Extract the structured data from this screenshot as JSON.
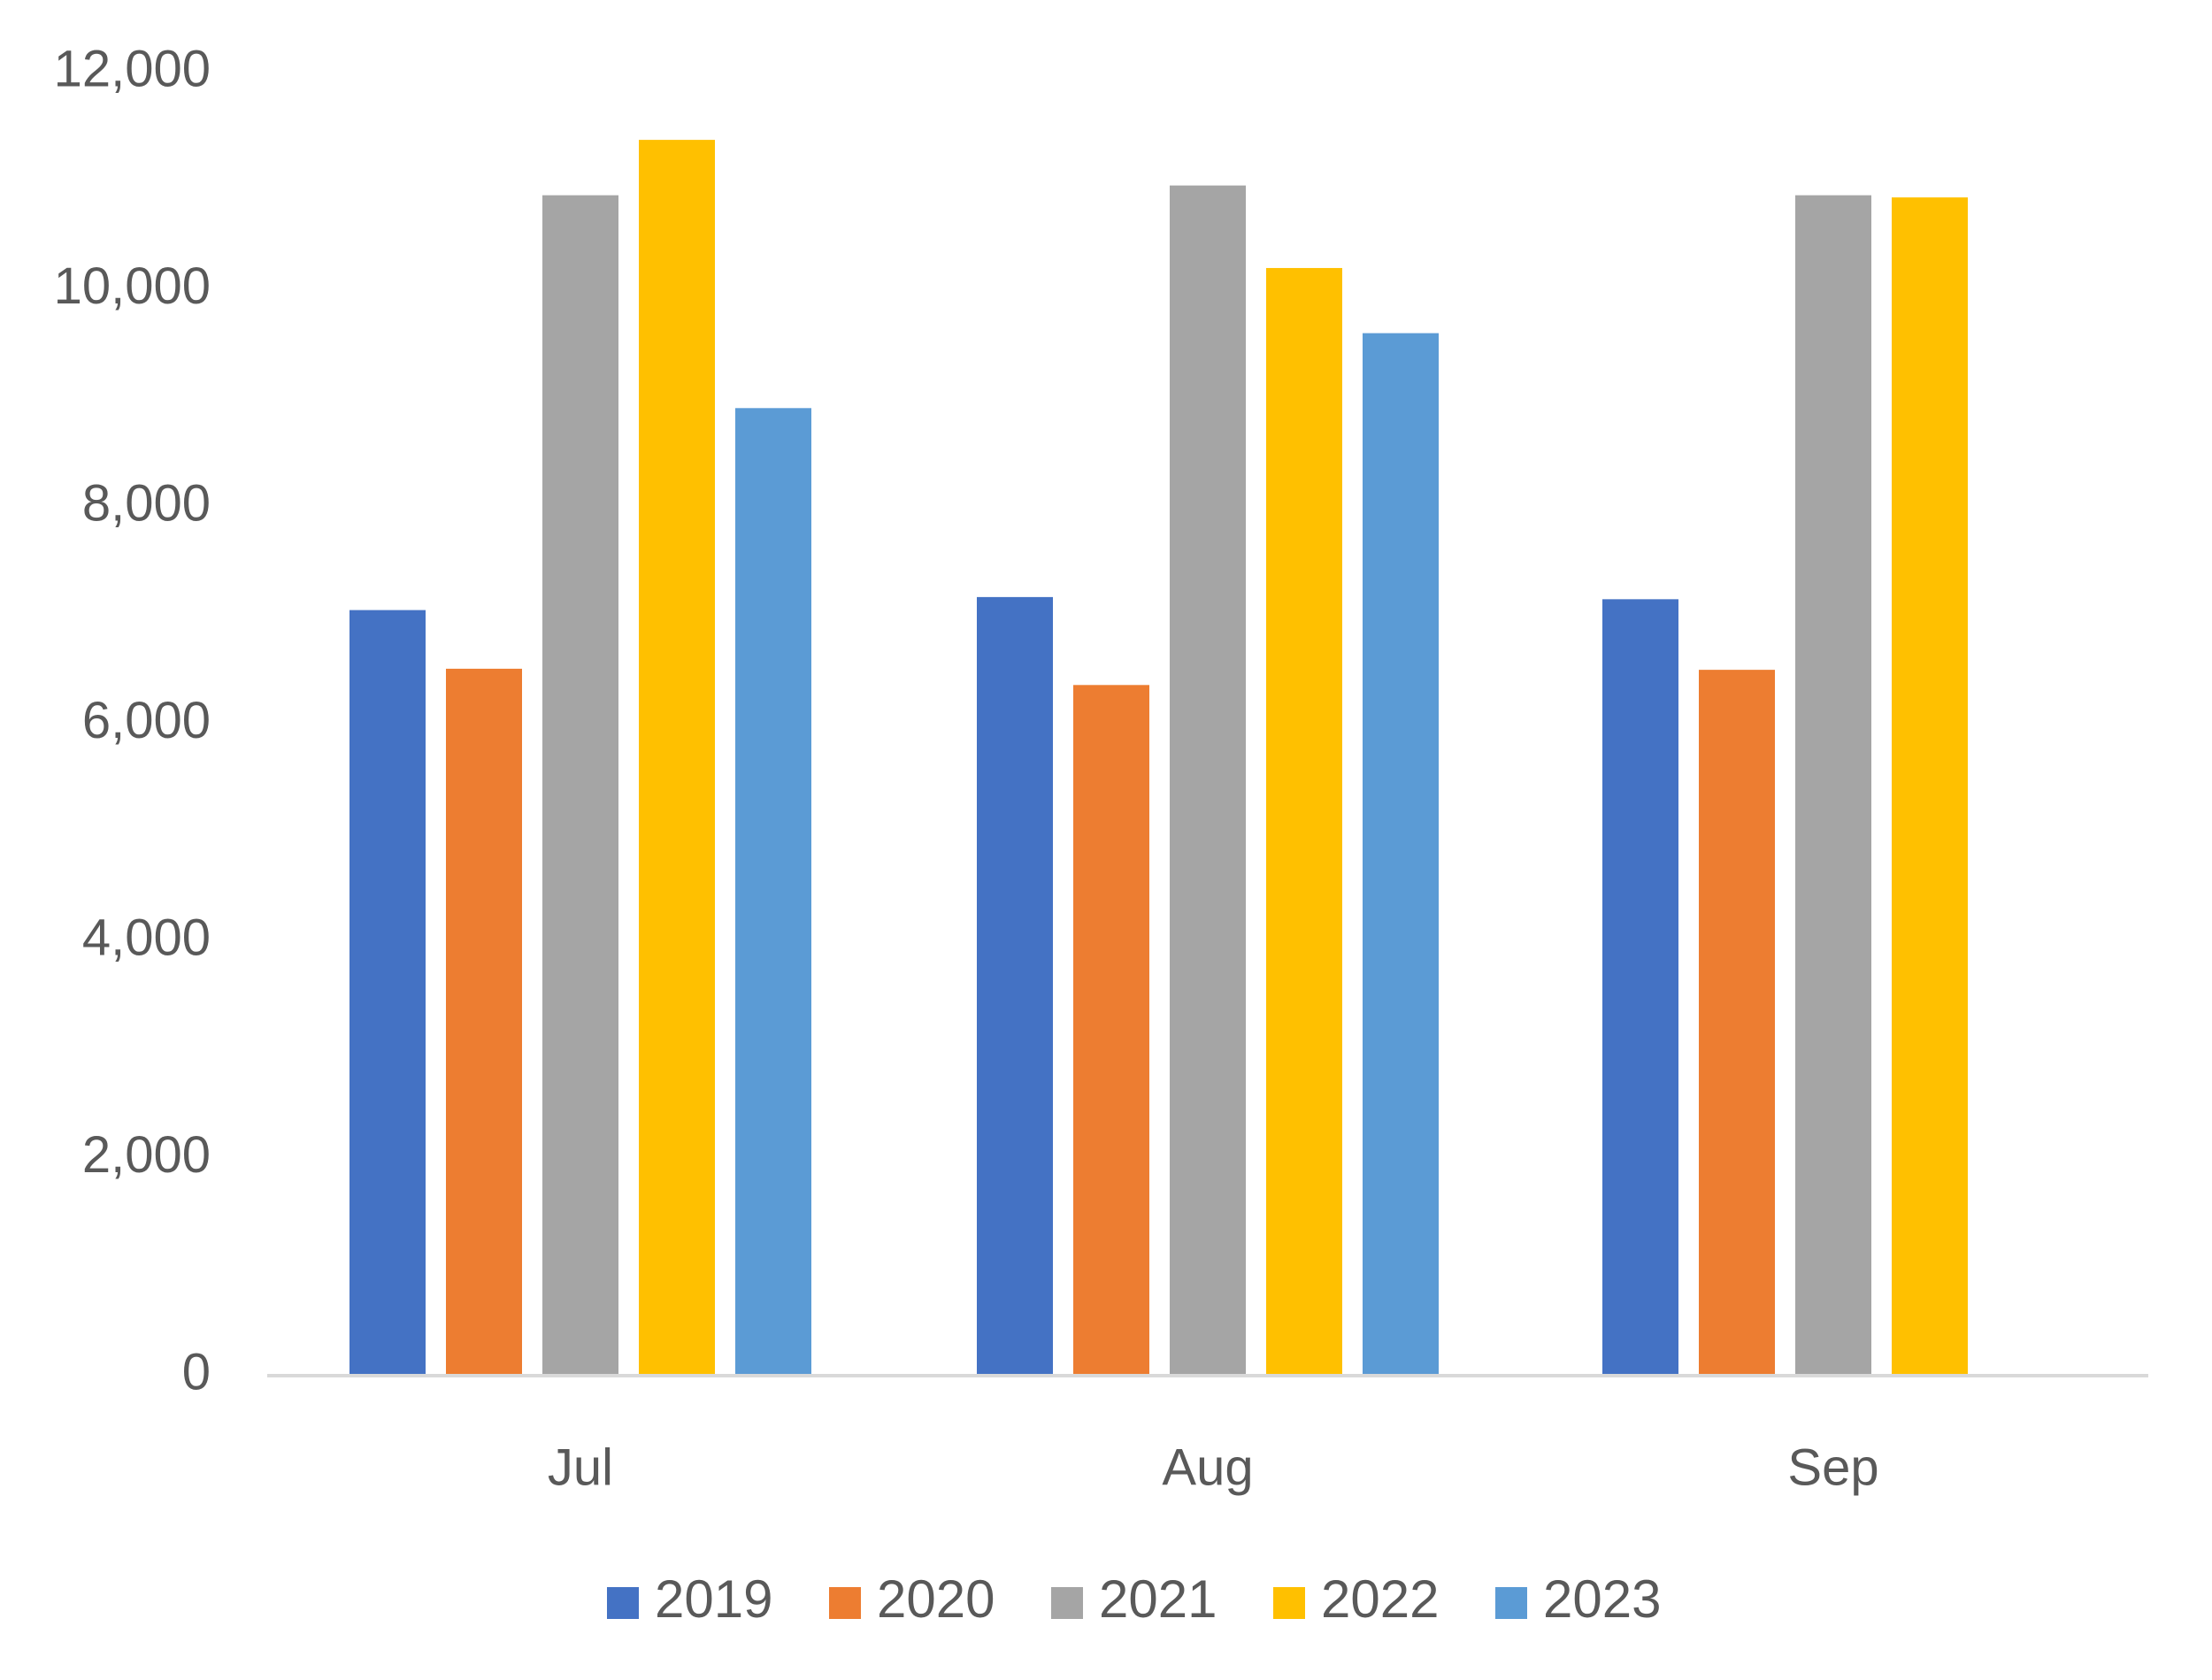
{
  "chart_data": {
    "type": "bar",
    "title": "",
    "xlabel": "",
    "ylabel": "",
    "categories": [
      "Jul",
      "Aug",
      "Sep"
    ],
    "ylim": [
      0,
      12000
    ],
    "yticks": [
      0,
      2000,
      4000,
      6000,
      8000,
      10000,
      12000
    ],
    "ytick_labels": [
      "0",
      "2,000",
      "4,000",
      "6,000",
      "8,000",
      "10,000",
      "12,000"
    ],
    "grid": false,
    "legend_position": "bottom",
    "series": [
      {
        "name": "2019",
        "color": "#4472C4",
        "values": [
          7050,
          7170,
          7150
        ]
      },
      {
        "name": "2020",
        "color": "#ED7D31",
        "values": [
          6510,
          6360,
          6500
        ]
      },
      {
        "name": "2021",
        "color": "#A5A5A5",
        "values": [
          10870,
          10960,
          10870
        ]
      },
      {
        "name": "2022",
        "color": "#FFC000",
        "values": [
          11380,
          10200,
          10850
        ]
      },
      {
        "name": "2023",
        "color": "#5B9BD5",
        "values": [
          8910,
          9600,
          null
        ]
      }
    ]
  }
}
